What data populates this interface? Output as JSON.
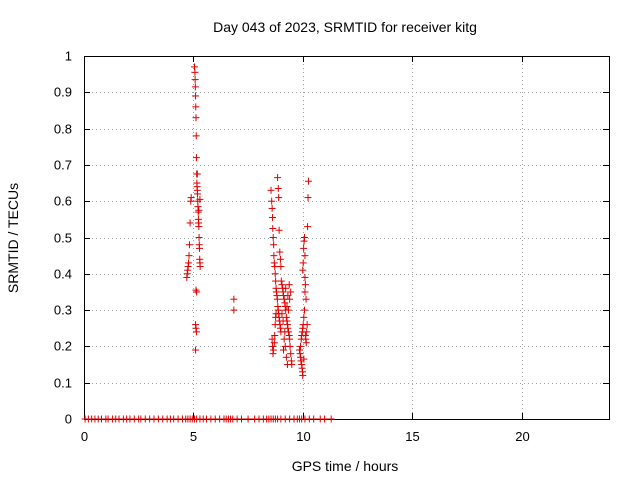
{
  "chart_data": {
    "type": "scatter",
    "title": "Day 043 of 2023, SRMTID for receiver kitg",
    "xlabel": "GPS time / hours",
    "ylabel": "SRMTID / TECUs",
    "xlim": [
      0,
      24
    ],
    "ylim": [
      0,
      1
    ],
    "grid": true,
    "marker": "+",
    "series_color": "#e00000",
    "x_ticks": [
      0,
      5,
      10,
      15,
      20
    ],
    "x_tick_labels": [
      "0",
      "5",
      "10",
      "15",
      "20"
    ],
    "y_ticks": [
      0,
      0.1,
      0.2,
      0.3,
      0.4,
      0.5,
      0.6,
      0.7,
      0.8,
      0.9,
      1
    ],
    "y_tick_labels": [
      "0",
      "0.1",
      "0.2",
      "0.3",
      "0.4",
      "0.5",
      "0.6",
      "0.7",
      "0.8",
      "0.9",
      "1"
    ],
    "series": [
      {
        "name": "SRMTID",
        "points": [
          [
            0.05,
            0
          ],
          [
            0.2,
            0
          ],
          [
            0.35,
            0
          ],
          [
            0.5,
            0
          ],
          [
            0.65,
            0
          ],
          [
            0.8,
            0
          ],
          [
            1.0,
            0
          ],
          [
            1.1,
            0
          ],
          [
            1.3,
            0
          ],
          [
            1.45,
            0
          ],
          [
            1.6,
            0
          ],
          [
            1.8,
            0
          ],
          [
            1.95,
            0
          ],
          [
            2.1,
            0
          ],
          [
            2.3,
            0
          ],
          [
            2.5,
            0
          ],
          [
            2.6,
            0
          ],
          [
            2.8,
            0
          ],
          [
            3.0,
            0
          ],
          [
            3.2,
            0
          ],
          [
            3.4,
            0
          ],
          [
            3.6,
            0
          ],
          [
            3.8,
            0
          ],
          [
            3.95,
            0
          ],
          [
            4.1,
            0
          ],
          [
            4.3,
            0
          ],
          [
            4.5,
            0
          ],
          [
            4.65,
            0
          ],
          [
            4.75,
            0
          ],
          [
            4.85,
            0
          ],
          [
            4.95,
            0
          ],
          [
            5.05,
            0
          ],
          [
            5.15,
            0
          ],
          [
            5.3,
            0
          ],
          [
            5.45,
            0
          ],
          [
            5.6,
            0
          ],
          [
            5.8,
            0
          ],
          [
            6.0,
            0
          ],
          [
            6.2,
            0
          ],
          [
            6.4,
            0
          ],
          [
            6.5,
            0
          ],
          [
            6.6,
            0
          ],
          [
            6.7,
            0
          ],
          [
            6.8,
            0
          ],
          [
            7.0,
            0
          ],
          [
            7.2,
            0
          ],
          [
            7.5,
            0
          ],
          [
            7.8,
            0
          ],
          [
            8.0,
            0
          ],
          [
            8.2,
            0
          ],
          [
            8.35,
            0
          ],
          [
            8.45,
            0
          ],
          [
            8.55,
            0
          ],
          [
            8.65,
            0
          ],
          [
            8.75,
            0
          ],
          [
            8.85,
            0
          ],
          [
            9.0,
            0
          ],
          [
            9.2,
            0
          ],
          [
            9.4,
            0
          ],
          [
            9.6,
            0
          ],
          [
            9.75,
            0
          ],
          [
            9.85,
            0
          ],
          [
            9.95,
            0
          ],
          [
            10.1,
            0
          ],
          [
            10.3,
            0
          ],
          [
            10.5,
            0
          ],
          [
            10.8,
            0
          ],
          [
            11.0,
            0
          ],
          [
            11.3,
            0
          ],
          [
            4.7,
            0.39
          ],
          [
            4.72,
            0.4
          ],
          [
            4.74,
            0.41
          ],
          [
            4.76,
            0.42
          ],
          [
            4.78,
            0.43
          ],
          [
            4.8,
            0.45
          ],
          [
            4.82,
            0.48
          ],
          [
            4.85,
            0.54
          ],
          [
            4.88,
            0.6
          ],
          [
            4.9,
            0.61
          ],
          [
            5.05,
            0.97
          ],
          [
            5.07,
            0.955
          ],
          [
            5.08,
            0.935
          ],
          [
            5.09,
            0.915
          ],
          [
            5.1,
            0.89
          ],
          [
            5.11,
            0.86
          ],
          [
            5.12,
            0.83
          ],
          [
            5.13,
            0.78
          ],
          [
            5.14,
            0.72
          ],
          [
            5.15,
            0.675
          ],
          [
            5.16,
            0.65
          ],
          [
            5.17,
            0.64
          ],
          [
            5.18,
            0.63
          ],
          [
            5.19,
            0.62
          ],
          [
            5.2,
            0.6
          ],
          [
            5.21,
            0.585
          ],
          [
            5.22,
            0.57
          ],
          [
            5.23,
            0.55
          ],
          [
            5.24,
            0.54
          ],
          [
            5.25,
            0.53
          ],
          [
            5.26,
            0.5
          ],
          [
            5.27,
            0.48
          ],
          [
            5.28,
            0.47
          ],
          [
            5.29,
            0.44
          ],
          [
            5.3,
            0.43
          ],
          [
            5.31,
            0.42
          ],
          [
            5.12,
            0.355
          ],
          [
            5.15,
            0.35
          ],
          [
            5.1,
            0.26
          ],
          [
            5.12,
            0.25
          ],
          [
            5.14,
            0.24
          ],
          [
            5.1,
            0.19
          ],
          [
            5.25,
            0.575
          ],
          [
            5.3,
            0.605
          ],
          [
            5.18,
            0.675
          ],
          [
            6.85,
            0.33
          ],
          [
            6.85,
            0.3
          ],
          [
            8.55,
            0.63
          ],
          [
            8.58,
            0.6
          ],
          [
            8.6,
            0.58
          ],
          [
            8.62,
            0.555
          ],
          [
            8.63,
            0.525
          ],
          [
            8.65,
            0.5
          ],
          [
            8.67,
            0.48
          ],
          [
            8.68,
            0.45
          ],
          [
            8.7,
            0.43
          ],
          [
            8.72,
            0.42
          ],
          [
            8.74,
            0.4
          ],
          [
            8.76,
            0.38
          ],
          [
            8.78,
            0.36
          ],
          [
            8.8,
            0.35
          ],
          [
            8.82,
            0.34
          ],
          [
            8.84,
            0.33
          ],
          [
            8.86,
            0.31
          ],
          [
            8.88,
            0.3
          ],
          [
            8.9,
            0.29
          ],
          [
            8.92,
            0.28
          ],
          [
            8.94,
            0.27
          ],
          [
            8.96,
            0.26
          ],
          [
            8.98,
            0.25
          ],
          [
            9.0,
            0.24
          ],
          [
            8.6,
            0.22
          ],
          [
            8.62,
            0.2
          ],
          [
            8.64,
            0.18
          ],
          [
            8.66,
            0.19
          ],
          [
            8.7,
            0.21
          ],
          [
            8.72,
            0.23
          ],
          [
            8.74,
            0.26
          ],
          [
            8.76,
            0.28
          ],
          [
            8.78,
            0.29
          ],
          [
            8.85,
            0.665
          ],
          [
            8.88,
            0.635
          ],
          [
            8.9,
            0.61
          ],
          [
            8.92,
            0.52
          ],
          [
            8.95,
            0.46
          ],
          [
            8.98,
            0.44
          ],
          [
            9.0,
            0.42
          ],
          [
            9.02,
            0.38
          ],
          [
            9.05,
            0.37
          ],
          [
            9.08,
            0.36
          ],
          [
            9.1,
            0.35
          ],
          [
            9.12,
            0.34
          ],
          [
            9.15,
            0.33
          ],
          [
            9.18,
            0.32
          ],
          [
            9.2,
            0.31
          ],
          [
            9.22,
            0.3
          ],
          [
            9.25,
            0.28
          ],
          [
            9.28,
            0.27
          ],
          [
            9.3,
            0.26
          ],
          [
            9.32,
            0.25
          ],
          [
            9.35,
            0.24
          ],
          [
            9.38,
            0.23
          ],
          [
            9.4,
            0.22
          ],
          [
            9.42,
            0.2
          ],
          [
            9.45,
            0.18
          ],
          [
            9.48,
            0.16
          ],
          [
            9.5,
            0.15
          ],
          [
            9.05,
            0.29
          ],
          [
            9.1,
            0.27
          ],
          [
            9.15,
            0.22
          ],
          [
            9.2,
            0.2
          ],
          [
            9.25,
            0.17
          ],
          [
            9.3,
            0.15
          ],
          [
            9.35,
            0.3
          ],
          [
            9.4,
            0.33
          ],
          [
            9.45,
            0.35
          ],
          [
            9.38,
            0.37
          ],
          [
            9.32,
            0.34
          ],
          [
            9.28,
            0.31
          ],
          [
            9.22,
            0.36
          ],
          [
            9.18,
            0.24
          ],
          [
            9.12,
            0.19
          ],
          [
            9.85,
            0.19
          ],
          [
            9.88,
            0.18
          ],
          [
            9.9,
            0.17
          ],
          [
            9.92,
            0.16
          ],
          [
            9.95,
            0.15
          ],
          [
            9.97,
            0.14
          ],
          [
            9.99,
            0.13
          ],
          [
            10.0,
            0.12
          ],
          [
            9.9,
            0.2
          ],
          [
            9.93,
            0.22
          ],
          [
            9.95,
            0.23
          ],
          [
            9.98,
            0.24
          ],
          [
            10.0,
            0.25
          ],
          [
            10.02,
            0.26
          ],
          [
            10.05,
            0.28
          ],
          [
            10.08,
            0.3
          ],
          [
            10.1,
            0.35
          ],
          [
            10.12,
            0.37
          ],
          [
            10.0,
            0.41
          ],
          [
            10.02,
            0.43
          ],
          [
            10.04,
            0.47
          ],
          [
            10.06,
            0.49
          ],
          [
            10.08,
            0.5
          ],
          [
            10.1,
            0.45
          ],
          [
            10.12,
            0.23
          ],
          [
            10.14,
            0.22
          ],
          [
            10.16,
            0.21
          ],
          [
            10.18,
            0.24
          ],
          [
            10.2,
            0.26
          ],
          [
            10.22,
            0.53
          ],
          [
            10.24,
            0.61
          ],
          [
            10.26,
            0.655
          ],
          [
            10.1,
            0.39
          ],
          [
            10.15,
            0.33
          ],
          [
            10.05,
            0.165
          ]
        ]
      }
    ]
  }
}
